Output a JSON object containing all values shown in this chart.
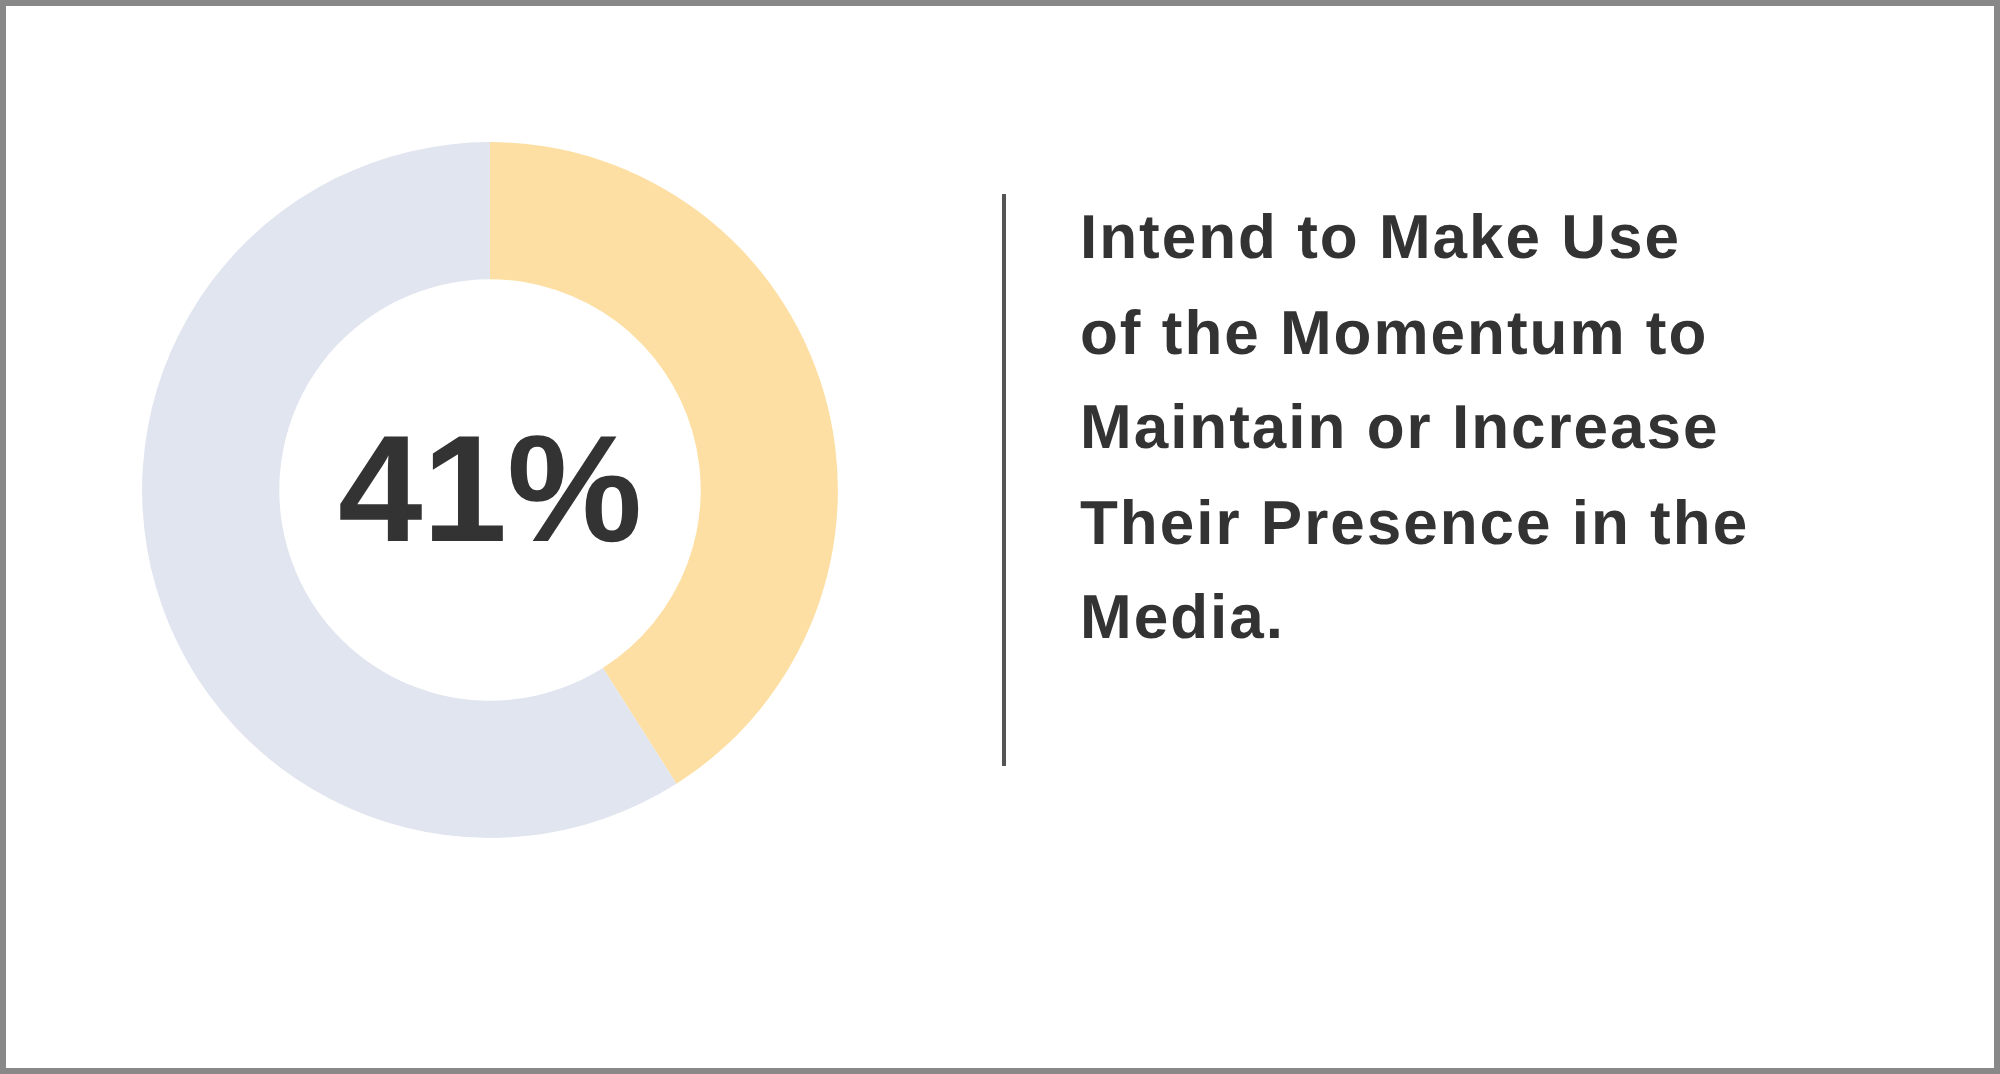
{
  "chart_data": {
    "type": "donut",
    "title": "Intend to Make Use of the Momentum to Maintain or Increase Their Presence in the Media.",
    "categories": [
      null,
      null
    ],
    "values": [
      41,
      59
    ],
    "colors": [
      "#fddfa4",
      "#e1e5ef"
    ],
    "value_labels": [
      "41%",
      null
    ]
  }
}
